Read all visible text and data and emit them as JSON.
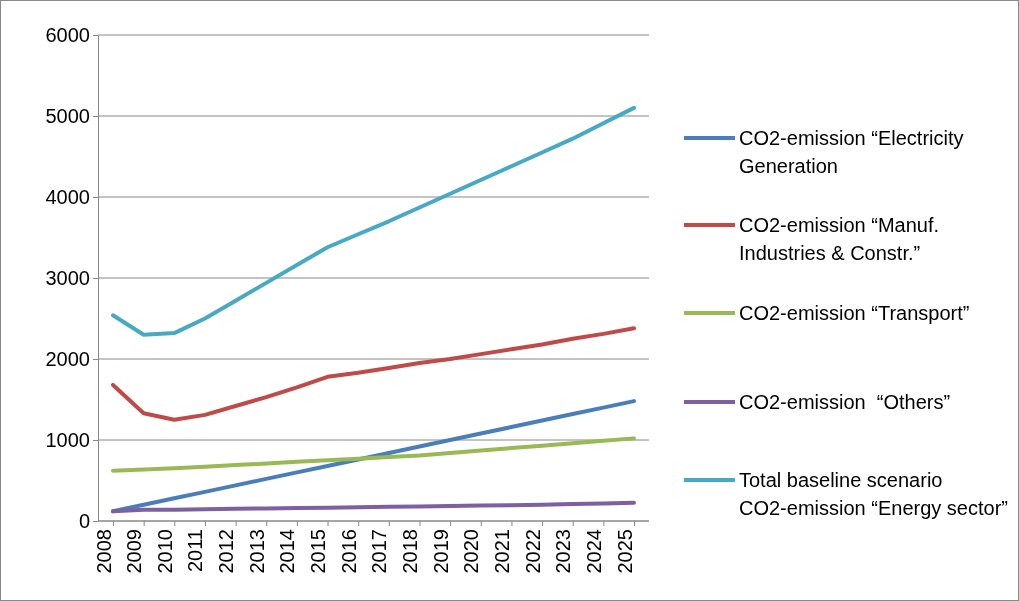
{
  "chart_data": {
    "type": "line",
    "categories": [
      "2008",
      "2009",
      "2010",
      "2011",
      "2012",
      "2013",
      "2014",
      "2015",
      "2016",
      "2017",
      "2018",
      "2019",
      "2020",
      "2021",
      "2022",
      "2023",
      "2024",
      "2025"
    ],
    "ylim": [
      0,
      6000
    ],
    "yticks": [
      0,
      1000,
      2000,
      3000,
      4000,
      5000,
      6000
    ],
    "grid": "y",
    "legend": "right",
    "marker": "none",
    "line_style": "solid",
    "series": [
      {
        "name": "CO2-emission “Electricity Generation",
        "color": "#4a7ebb",
        "values": [
          120,
          200,
          280,
          360,
          440,
          520,
          600,
          680,
          760,
          840,
          920,
          1000,
          1080,
          1160,
          1240,
          1320,
          1400,
          1480
        ]
      },
      {
        "name": "CO2-emission “Manuf. Industries & Constr.”",
        "color": "#be4b48",
        "values": [
          1680,
          1330,
          1250,
          1310,
          1420,
          1530,
          1650,
          1780,
          1830,
          1890,
          1950,
          2000,
          2060,
          2120,
          2180,
          2250,
          2310,
          2380
        ]
      },
      {
        "name": "CO2-emission “Transport”",
        "color": "#98b954",
        "values": [
          620,
          635,
          650,
          670,
          690,
          710,
          730,
          750,
          770,
          790,
          810,
          840,
          870,
          900,
          930,
          960,
          990,
          1020
        ]
      },
      {
        "name": "CO2-emission  “Others”",
        "color": "#7d60a0",
        "values": [
          120,
          140,
          140,
          145,
          150,
          155,
          160,
          165,
          170,
          175,
          180,
          185,
          190,
          195,
          200,
          210,
          215,
          225
        ]
      },
      {
        "name": "Total baseline scenario CO2-emission “Energy sector”",
        "color": "#46aac5",
        "values": [
          2540,
          2300,
          2320,
          2500,
          2720,
          2940,
          3160,
          3380,
          3540,
          3700,
          3870,
          4040,
          4210,
          4380,
          4550,
          4720,
          4910,
          5100
        ]
      }
    ]
  }
}
